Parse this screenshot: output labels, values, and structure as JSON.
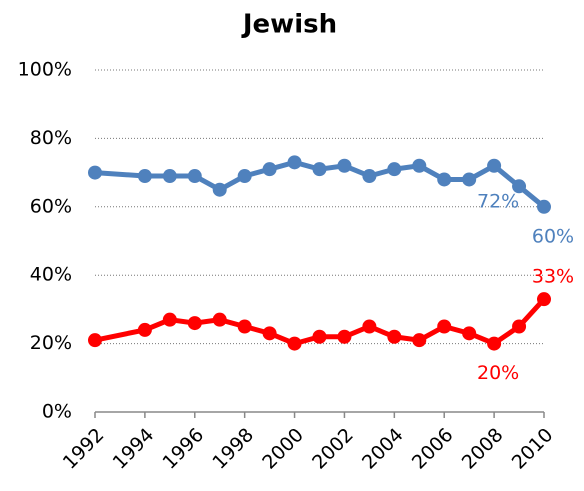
{
  "chart_data": {
    "type": "line",
    "title": "Jewish",
    "x": [
      1992,
      1994,
      1995,
      1996,
      1997,
      1998,
      1999,
      2000,
      2001,
      2002,
      2003,
      2004,
      2005,
      2006,
      2007,
      2008,
      2009,
      2010
    ],
    "series": [
      {
        "color": "#4f81bd",
        "values": [
          70,
          69,
          69,
          69,
          65,
          69,
          71,
          73,
          71,
          72,
          69,
          71,
          72,
          68,
          68,
          72,
          66,
          60
        ],
        "value_labels": [
          null,
          null,
          null,
          null,
          null,
          null,
          null,
          null,
          null,
          null,
          null,
          null,
          null,
          null,
          null,
          "72%",
          null,
          "60%"
        ]
      },
      {
        "color": "#ff0000",
        "values": [
          21,
          24,
          27,
          26,
          27,
          25,
          23,
          20,
          22,
          22,
          25,
          22,
          21,
          25,
          23,
          20,
          25,
          33
        ],
        "value_labels": [
          null,
          null,
          null,
          null,
          null,
          null,
          null,
          null,
          null,
          null,
          null,
          null,
          null,
          null,
          null,
          "20%",
          null,
          "33%"
        ]
      }
    ],
    "xlim": [
      1992,
      2010
    ],
    "xticks": [
      1992,
      1994,
      1996,
      1998,
      2000,
      2002,
      2004,
      2006,
      2008,
      2010
    ],
    "ylim": [
      0,
      100
    ],
    "yticks": [
      {
        "value": 0,
        "label": "0%"
      },
      {
        "value": 20,
        "label": "20%"
      },
      {
        "value": 40,
        "label": "40%"
      },
      {
        "value": 60,
        "label": "60%"
      },
      {
        "value": 80,
        "label": "80%"
      },
      {
        "value": 100,
        "label": "100%"
      }
    ],
    "grid": true
  }
}
